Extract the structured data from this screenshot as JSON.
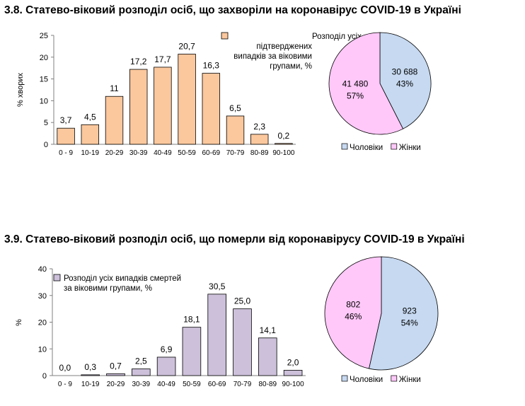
{
  "chart_data": [
    {
      "type": "bar",
      "title": "3.8.  Статево-віковий розподіл осіб, що захворіли на коронавірус COVID-19 в Україні",
      "ylabel": "% хворих",
      "ylim": [
        0,
        25
      ],
      "yticks": [
        "0",
        "5",
        "10",
        "15",
        "20",
        "25"
      ],
      "categories": [
        "0 - 9",
        "10-19",
        "20-29",
        "30-39",
        "40-49",
        "50-59",
        "60-69",
        "70-79",
        "80-89",
        "90-100"
      ],
      "values": [
        3.7,
        4.5,
        11,
        17.2,
        17.7,
        20.7,
        16.3,
        6.5,
        2.3,
        0.2
      ],
      "value_labels": [
        "3,7",
        "4,5",
        "11",
        "17,2",
        "17,7",
        "20,7",
        "16,3",
        "6,5",
        "2,3",
        "0,2"
      ],
      "legend": [
        "Розподіл усіх",
        "підтверджених",
        "випадків за віковими",
        "групами, %"
      ],
      "bar_color": "#fbc79d"
    },
    {
      "type": "pie",
      "slices": [
        {
          "name": "Чоловіки",
          "value": 30688,
          "value_label": "30 688",
          "percent_label": "43%",
          "color": "#c6d9f1"
        },
        {
          "name": "Жінки",
          "value": 41480,
          "value_label": "41 480",
          "percent_label": "57%",
          "color": "#ffc8f9"
        }
      ],
      "legend": [
        "Чоловіки",
        "Жінки"
      ]
    },
    {
      "type": "bar",
      "title": "3.9.  Статево-віковий розподіл осіб, що померли від коронавірусу COVID-19 в Україні",
      "ylabel": "%",
      "ylim": [
        0,
        40
      ],
      "yticks": [
        "0",
        "10",
        "20",
        "30",
        "40"
      ],
      "categories": [
        "0 - 9",
        "10-19",
        "20-29",
        "30-39",
        "40-49",
        "50-59",
        "60-69",
        "70-79",
        "80-89",
        "90-100"
      ],
      "values": [
        0.0,
        0.3,
        0.7,
        2.5,
        6.9,
        18.1,
        30.5,
        25.0,
        14.1,
        2.0
      ],
      "value_labels": [
        "0,0",
        "0,3",
        "0,7",
        "2,5",
        "6,9",
        "18,1",
        "30,5",
        "25,0",
        "14,1",
        "2,0"
      ],
      "legend": [
        "Розподіл усіх випадків смертей",
        "за віковими групами, %"
      ],
      "bar_color": "#ccc0da"
    },
    {
      "type": "pie",
      "slices": [
        {
          "name": "Чоловіки",
          "value": 923,
          "value_label": "923",
          "percent_label": "54%",
          "color": "#c6d9f1"
        },
        {
          "name": "Жінки",
          "value": 802,
          "value_label": "802",
          "percent_label": "46%",
          "color": "#ffc8f9"
        }
      ],
      "legend": [
        "Чоловіки",
        "Жінки"
      ]
    }
  ]
}
